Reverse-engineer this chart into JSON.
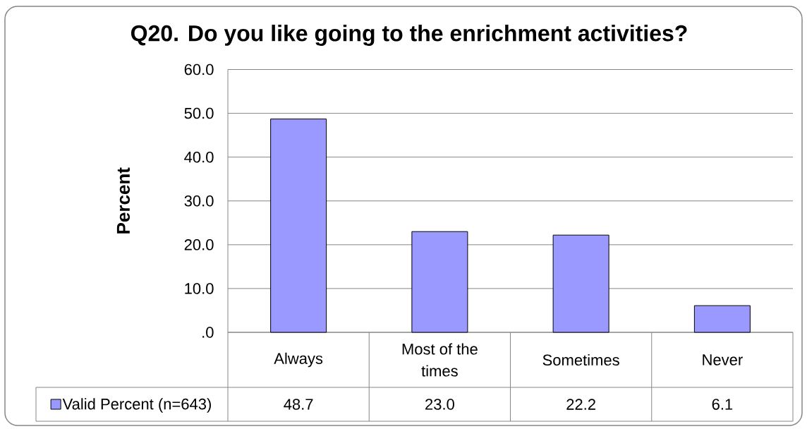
{
  "chart_data": {
    "type": "bar",
    "title": "Q20. Do you like going to the enrichment activities?",
    "ylabel": "Percent",
    "categories": [
      "Always",
      "Most of the times",
      "Sometimes",
      "Never"
    ],
    "series": [
      {
        "name": "Valid Percent (n=643)",
        "color": "#9999ff",
        "values": [
          48.7,
          23.0,
          22.2,
          6.1
        ],
        "value_labels": [
          "48.7",
          "23.0",
          "22.2",
          "6.1"
        ]
      }
    ],
    "ylim": [
      0,
      60
    ],
    "yticks": [
      {
        "value": 0,
        "label": ".0"
      },
      {
        "value": 10,
        "label": "10.0"
      },
      {
        "value": 20,
        "label": "20.0"
      },
      {
        "value": 30,
        "label": "30.0"
      },
      {
        "value": 40,
        "label": "40.0"
      },
      {
        "value": 50,
        "label": "50.0"
      },
      {
        "value": 60,
        "label": "60.0"
      }
    ],
    "grid": "y",
    "legend": "bottom"
  }
}
